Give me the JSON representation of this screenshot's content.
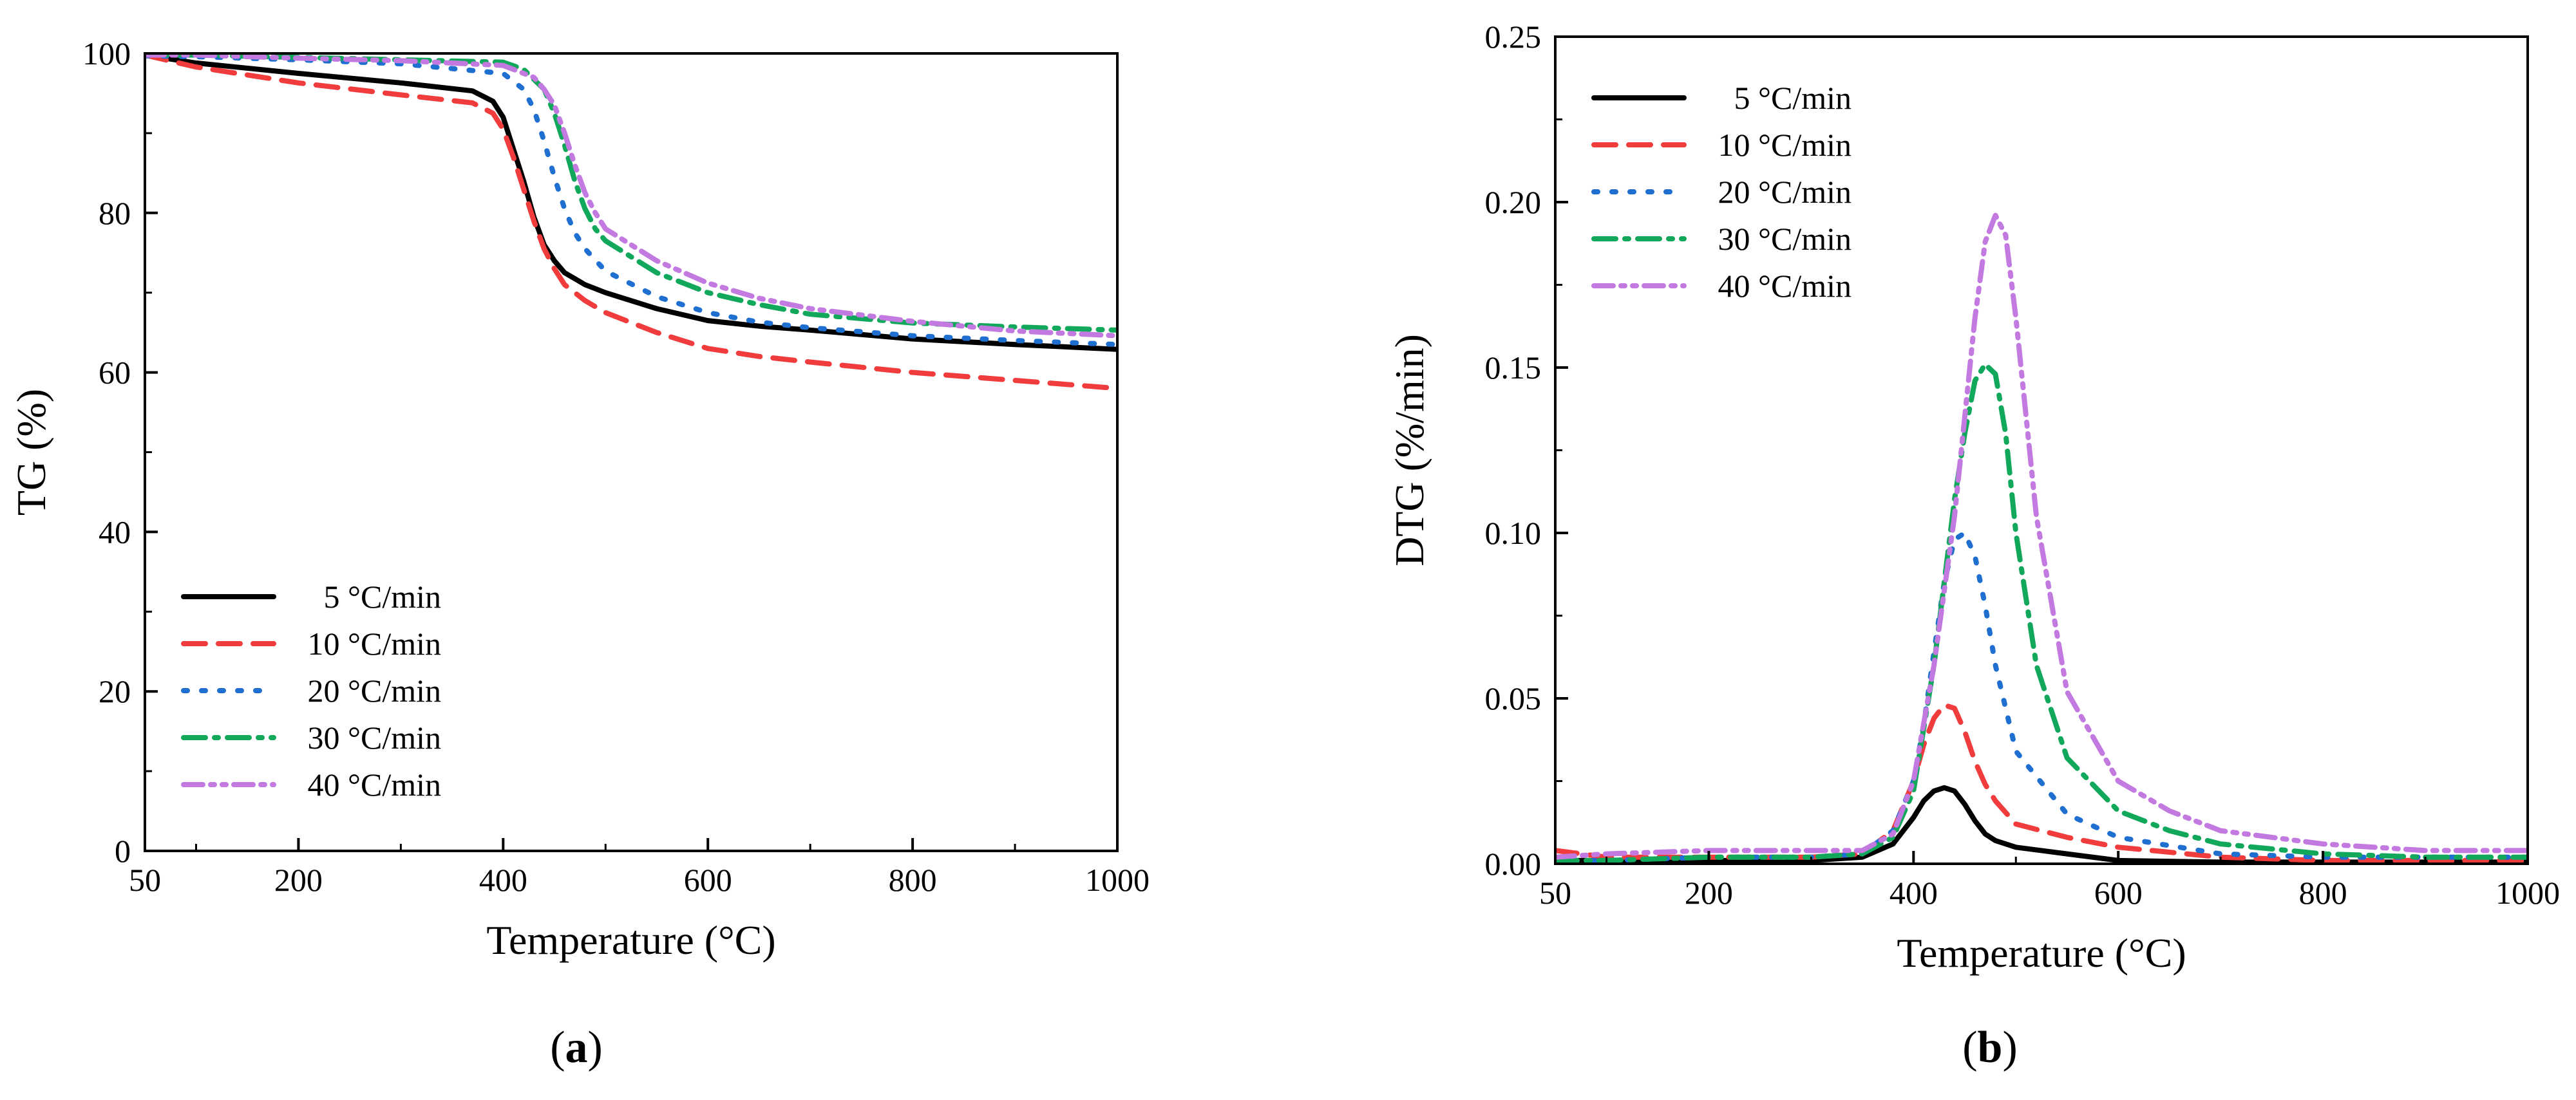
{
  "chart_data": [
    {
      "type": "line",
      "panel": "(a)",
      "panel_letter": "a",
      "title": "",
      "xlabel": "Temperature (°C)",
      "ylabel": "TG (%)",
      "xlim": [
        50,
        1000
      ],
      "ylim": [
        0,
        100
      ],
      "xticks": [
        50,
        200,
        400,
        600,
        800,
        1000
      ],
      "yticks": [
        0,
        20,
        40,
        60,
        80,
        100
      ],
      "ytick_format": 0,
      "legend_position": "bottom-left",
      "series": [
        {
          "name": "5 °C/min",
          "color": "#000000",
          "dash": "solid",
          "x": [
            50,
            100,
            200,
            300,
            370,
            390,
            400,
            410,
            420,
            430,
            440,
            450,
            460,
            480,
            500,
            550,
            600,
            650,
            700,
            800,
            900,
            1000
          ],
          "y": [
            99.8,
            98.8,
            97.5,
            96.3,
            95.3,
            94,
            92,
            88,
            84,
            79.5,
            76,
            74,
            72.5,
            71,
            70,
            68,
            66.5,
            65.8,
            65.3,
            64.2,
            63.5,
            62.9
          ]
        },
        {
          "name": "10 °C/min",
          "color": "#f03c3c",
          "dash": "long",
          "x": [
            50,
            100,
            200,
            300,
            370,
            390,
            400,
            410,
            420,
            430,
            440,
            450,
            460,
            480,
            500,
            550,
            600,
            650,
            700,
            800,
            900,
            1000
          ],
          "y": [
            99.8,
            98.3,
            96.3,
            94.8,
            93.8,
            92.5,
            90.5,
            87,
            83,
            79,
            75.5,
            73,
            71,
            69,
            67.5,
            65,
            63,
            62,
            61.3,
            60,
            59,
            58
          ]
        },
        {
          "name": "20 °C/min",
          "color": "#1f6fd0",
          "dash": "dot",
          "x": [
            50,
            100,
            200,
            300,
            400,
            420,
            430,
            440,
            450,
            460,
            470,
            480,
            500,
            550,
            600,
            650,
            700,
            800,
            900,
            1000
          ],
          "y": [
            99.7,
            99.6,
            99.2,
            98.7,
            97.5,
            95.5,
            93,
            89,
            84.5,
            80.5,
            77.5,
            75.5,
            72.7,
            69.5,
            67.5,
            66.3,
            65.6,
            64.6,
            64,
            63.5
          ]
        },
        {
          "name": "30 °C/min",
          "color": "#12a85b",
          "dash": "dashdot",
          "x": [
            50,
            100,
            200,
            300,
            400,
            420,
            440,
            450,
            460,
            470,
            480,
            490,
            500,
            550,
            600,
            650,
            700,
            800,
            900,
            1000
          ],
          "y": [
            99.8,
            99.8,
            99.5,
            99.2,
            98.9,
            98,
            95.5,
            92.5,
            88.5,
            84,
            80.5,
            78,
            76.5,
            72.5,
            70,
            68.5,
            67.3,
            66.2,
            65.7,
            65.3
          ]
        },
        {
          "name": "40 °C/min",
          "color": "#c37ae0",
          "dash": "dashdotdot",
          "x": [
            50,
            100,
            200,
            300,
            400,
            430,
            440,
            450,
            460,
            470,
            480,
            490,
            500,
            550,
            600,
            650,
            700,
            800,
            900,
            1000
          ],
          "y": [
            99.8,
            99.8,
            99.4,
            99.1,
            98.5,
            97,
            95.5,
            93.5,
            90,
            86,
            82.5,
            80,
            78,
            74,
            71.2,
            69.3,
            68,
            66.4,
            65.2,
            64.6
          ]
        }
      ]
    },
    {
      "type": "line",
      "panel": "(b)",
      "panel_letter": "b",
      "title": "",
      "xlabel": "Temperature (°C)",
      "ylabel": "DTG (%/min)",
      "xlim": [
        50,
        1000
      ],
      "ylim": [
        0,
        0.25
      ],
      "xticks": [
        50,
        200,
        400,
        600,
        800,
        1000
      ],
      "yticks": [
        0.0,
        0.05,
        0.1,
        0.15,
        0.2,
        0.25
      ],
      "ytick_format": 2,
      "legend_position": "top-left",
      "series": [
        {
          "name": "5 °C/min",
          "color": "#000000",
          "dash": "solid",
          "x": [
            50,
            100,
            200,
            300,
            350,
            380,
            400,
            410,
            420,
            430,
            440,
            450,
            460,
            470,
            480,
            500,
            550,
            600,
            700,
            800,
            1000
          ],
          "y": [
            0.001,
            0.001,
            0.001,
            0.001,
            0.002,
            0.006,
            0.014,
            0.019,
            0.022,
            0.023,
            0.022,
            0.018,
            0.013,
            0.009,
            0.007,
            0.005,
            0.003,
            0.001,
            0.0005,
            0.0005,
            0.0005
          ]
        },
        {
          "name": "10 °C/min",
          "color": "#f03c3c",
          "dash": "long",
          "x": [
            50,
            100,
            200,
            300,
            350,
            380,
            400,
            410,
            420,
            430,
            440,
            450,
            460,
            470,
            480,
            500,
            550,
            600,
            700,
            800,
            900,
            1000
          ],
          "y": [
            0.004,
            0.002,
            0.002,
            0.002,
            0.003,
            0.01,
            0.025,
            0.036,
            0.044,
            0.048,
            0.047,
            0.04,
            0.031,
            0.024,
            0.019,
            0.012,
            0.008,
            0.005,
            0.002,
            0.001,
            0.001,
            0.001
          ]
        },
        {
          "name": "20 °C/min",
          "color": "#1f6fd0",
          "dash": "dot",
          "x": [
            50,
            100,
            200,
            300,
            350,
            380,
            400,
            410,
            420,
            430,
            440,
            450,
            460,
            470,
            480,
            500,
            550,
            600,
            700,
            800,
            900,
            1000
          ],
          "y": [
            0.001,
            0.001,
            0.002,
            0.002,
            0.003,
            0.01,
            0.025,
            0.042,
            0.064,
            0.085,
            0.098,
            0.1,
            0.093,
            0.078,
            0.06,
            0.034,
            0.015,
            0.008,
            0.003,
            0.002,
            0.002,
            0.002
          ]
        },
        {
          "name": "30 °C/min",
          "color": "#12a85b",
          "dash": "dashdot",
          "x": [
            50,
            100,
            200,
            300,
            350,
            380,
            400,
            420,
            430,
            440,
            450,
            460,
            470,
            480,
            490,
            500,
            520,
            550,
            600,
            650,
            700,
            800,
            900,
            1000
          ],
          "y": [
            0.001,
            0.001,
            0.002,
            0.002,
            0.003,
            0.008,
            0.022,
            0.06,
            0.085,
            0.11,
            0.13,
            0.146,
            0.151,
            0.148,
            0.13,
            0.1,
            0.06,
            0.032,
            0.016,
            0.01,
            0.006,
            0.003,
            0.002,
            0.002
          ]
        },
        {
          "name": "40 °C/min",
          "color": "#c37ae0",
          "dash": "dashdotdot",
          "x": [
            50,
            100,
            200,
            300,
            350,
            380,
            400,
            420,
            440,
            450,
            460,
            470,
            480,
            490,
            500,
            520,
            550,
            600,
            650,
            700,
            800,
            900,
            1000
          ],
          "y": [
            0.002,
            0.003,
            0.004,
            0.004,
            0.004,
            0.009,
            0.025,
            0.06,
            0.105,
            0.135,
            0.165,
            0.188,
            0.196,
            0.19,
            0.165,
            0.105,
            0.052,
            0.025,
            0.016,
            0.01,
            0.006,
            0.004,
            0.004
          ]
        }
      ]
    }
  ]
}
